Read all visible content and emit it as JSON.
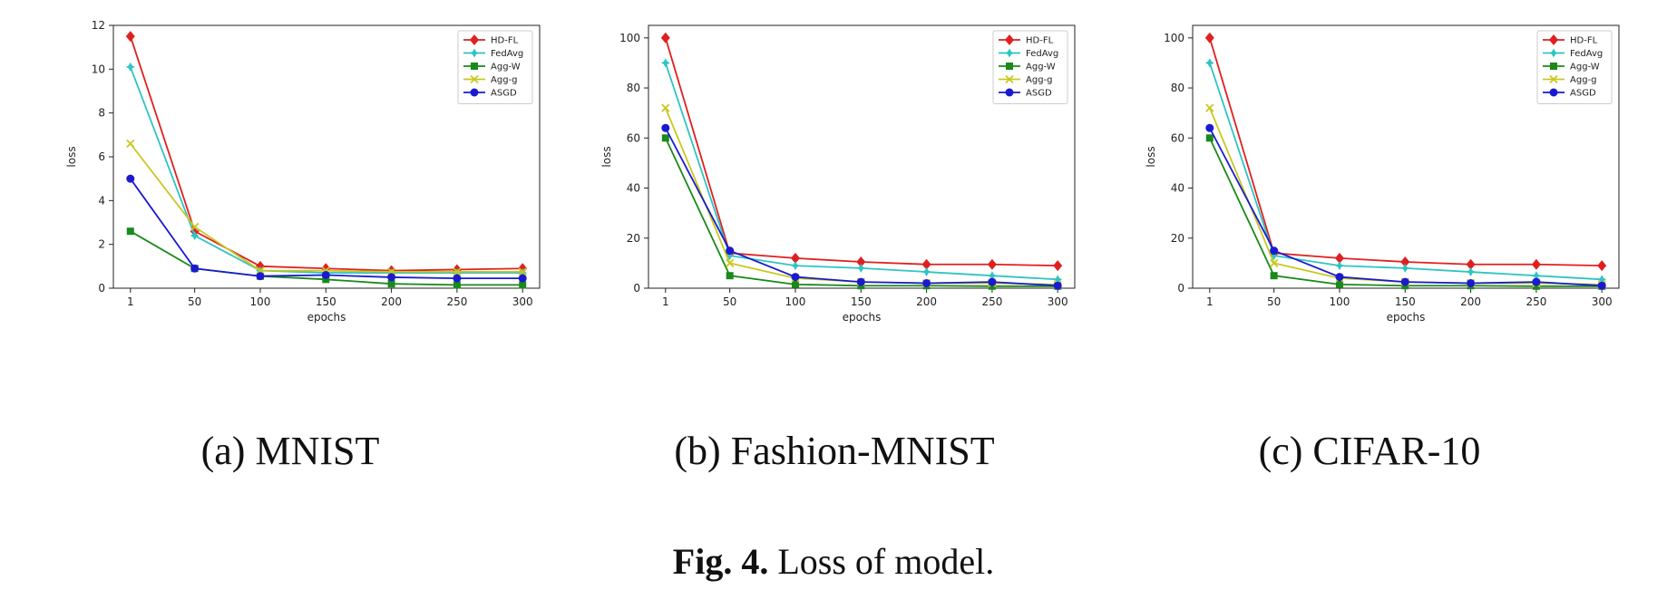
{
  "chart_data": [
    {
      "type": "line",
      "caption": "(a) MNIST",
      "xlabel": "epochs",
      "ylabel": "loss",
      "x": [
        1,
        50,
        100,
        150,
        200,
        250,
        300
      ],
      "ylim": [
        0,
        12
      ],
      "yticks": [
        0,
        2,
        4,
        6,
        8,
        10,
        12
      ],
      "legend_position": "top-right",
      "grid": false,
      "series": [
        {
          "name": "HD-FL",
          "color": "#e02020",
          "marker": "diamond",
          "values": [
            11.5,
            2.6,
            1.0,
            0.9,
            0.8,
            0.85,
            0.9
          ]
        },
        {
          "name": "FedAvg",
          "color": "#2ec4c4",
          "marker": "star",
          "values": [
            10.1,
            2.4,
            0.8,
            0.7,
            0.7,
            0.7,
            0.7
          ]
        },
        {
          "name": "Agg-W",
          "color": "#1a8a1a",
          "marker": "square",
          "values": [
            2.6,
            0.9,
            0.55,
            0.4,
            0.2,
            0.15,
            0.15
          ]
        },
        {
          "name": "Agg-g",
          "color": "#c8c820",
          "marker": "x",
          "values": [
            6.6,
            2.8,
            0.8,
            0.8,
            0.75,
            0.75,
            0.75
          ]
        },
        {
          "name": "ASGD",
          "color": "#1a1ad0",
          "marker": "circle",
          "values": [
            5.0,
            0.9,
            0.55,
            0.6,
            0.5,
            0.45,
            0.45
          ]
        }
      ]
    },
    {
      "type": "line",
      "caption": "(b) Fashion-MNIST",
      "xlabel": "epochs",
      "ylabel": "loss",
      "x": [
        1,
        50,
        100,
        150,
        200,
        250,
        300
      ],
      "ylim": [
        0,
        105
      ],
      "yticks": [
        0,
        20,
        40,
        60,
        80,
        100
      ],
      "legend_position": "top-right",
      "grid": false,
      "series": [
        {
          "name": "HD-FL",
          "color": "#e02020",
          "marker": "diamond",
          "values": [
            100,
            14,
            12,
            10.5,
            9.5,
            9.5,
            9
          ]
        },
        {
          "name": "FedAvg",
          "color": "#2ec4c4",
          "marker": "star",
          "values": [
            90,
            13,
            9,
            8,
            6.5,
            5,
            3.5
          ]
        },
        {
          "name": "Agg-W",
          "color": "#1a8a1a",
          "marker": "square",
          "values": [
            60,
            5,
            1.5,
            1,
            1,
            0.8,
            0.8
          ]
        },
        {
          "name": "Agg-g",
          "color": "#c8c820",
          "marker": "x",
          "values": [
            72,
            10,
            4,
            2.5,
            2,
            2,
            1.5
          ]
        },
        {
          "name": "ASGD",
          "color": "#1a1ad0",
          "marker": "circle",
          "values": [
            64,
            15,
            4.5,
            2.5,
            2,
            2.5,
            1
          ]
        }
      ]
    },
    {
      "type": "line",
      "caption": "(c) CIFAR-10",
      "xlabel": "epochs",
      "ylabel": "loss",
      "x": [
        1,
        50,
        100,
        150,
        200,
        250,
        300
      ],
      "ylim": [
        0,
        105
      ],
      "yticks": [
        0,
        20,
        40,
        60,
        80,
        100
      ],
      "legend_position": "top-right",
      "grid": false,
      "series": [
        {
          "name": "HD-FL",
          "color": "#e02020",
          "marker": "diamond",
          "values": [
            100,
            14,
            12,
            10.5,
            9.5,
            9.5,
            9
          ]
        },
        {
          "name": "FedAvg",
          "color": "#2ec4c4",
          "marker": "star",
          "values": [
            90,
            13,
            9,
            8,
            6.5,
            5,
            3.5
          ]
        },
        {
          "name": "Agg-W",
          "color": "#1a8a1a",
          "marker": "square",
          "values": [
            60,
            5,
            1.5,
            1,
            1,
            0.8,
            0.8
          ]
        },
        {
          "name": "Agg-g",
          "color": "#c8c820",
          "marker": "x",
          "values": [
            72,
            10,
            4,
            2.5,
            2,
            2,
            1.5
          ]
        },
        {
          "name": "ASGD",
          "color": "#1a1ad0",
          "marker": "circle",
          "values": [
            64,
            15,
            4.5,
            2.5,
            2,
            2.5,
            1
          ]
        }
      ]
    }
  ],
  "figure": {
    "label": "Fig. 4.",
    "text": " Loss of model."
  }
}
